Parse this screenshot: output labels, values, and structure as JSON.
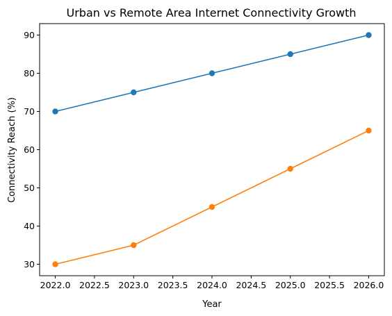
{
  "chart_data": {
    "type": "line",
    "title": "Urban vs Remote Area Internet Connectivity Growth",
    "xlabel": "Year",
    "ylabel": "Connectivity Reach (%)",
    "x": [
      2022,
      2023,
      2024,
      2025,
      2026
    ],
    "series": [
      {
        "values": [
          70,
          75,
          80,
          85,
          90
        ],
        "color": "#1f77b4",
        "marker": "circle"
      },
      {
        "values": [
          30,
          35,
          45,
          55,
          65
        ],
        "color": "#ff7f0e",
        "marker": "circle"
      }
    ],
    "xlim": [
      2021.8,
      2026.2
    ],
    "ylim": [
      27,
      93
    ],
    "xticks": [
      2022.0,
      2022.5,
      2023.0,
      2023.5,
      2024.0,
      2024.5,
      2025.0,
      2025.5,
      2026.0
    ],
    "xtick_labels": [
      "2022.0",
      "2022.5",
      "2023.0",
      "2023.5",
      "2024.0",
      "2024.5",
      "2025.0",
      "2025.5",
      "2026.0"
    ],
    "yticks": [
      30,
      40,
      50,
      60,
      70,
      80,
      90
    ],
    "ytick_labels": [
      "30",
      "40",
      "50",
      "60",
      "70",
      "80",
      "90"
    ],
    "grid": false,
    "legend": false
  }
}
